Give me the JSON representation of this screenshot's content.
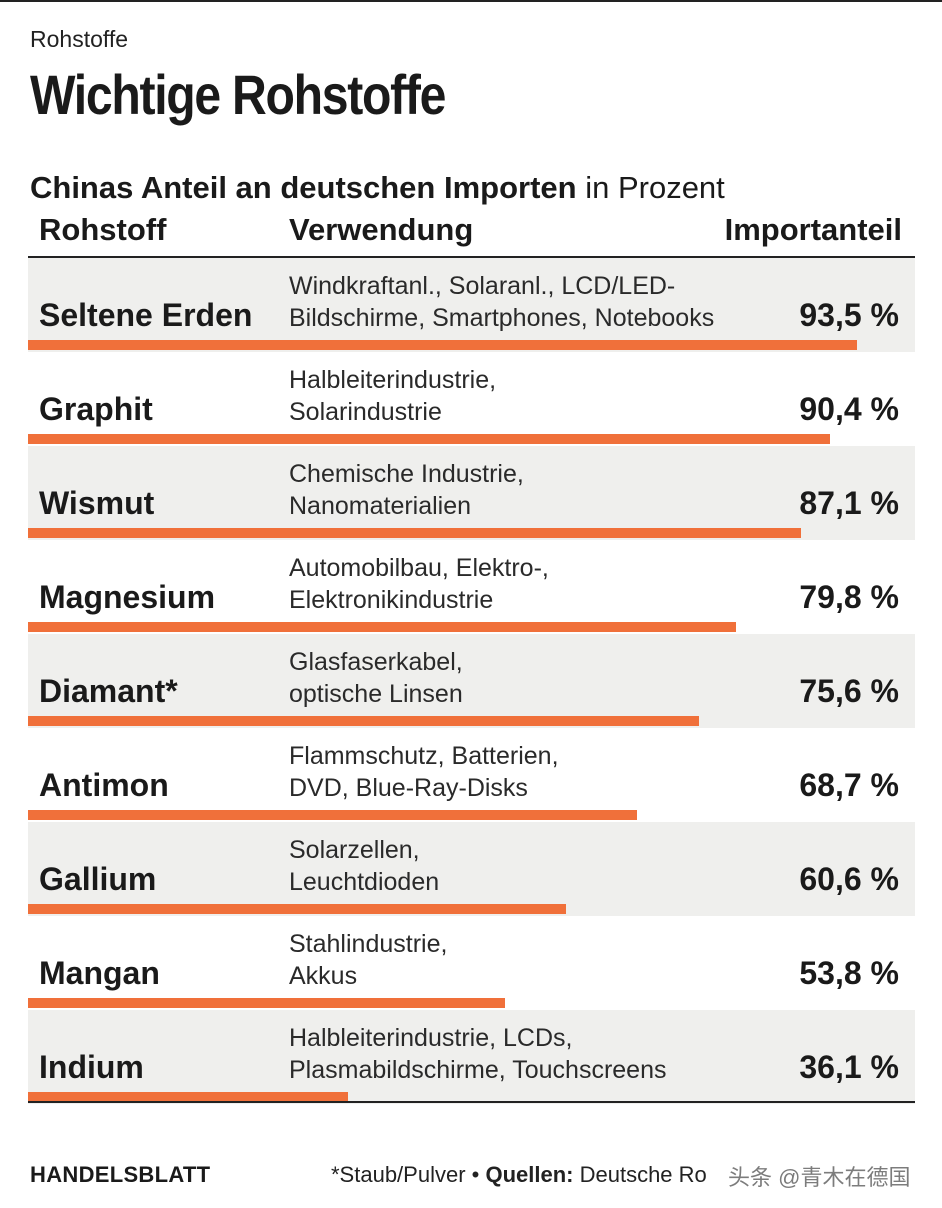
{
  "kicker": "Rohstoffe",
  "title": "Wichtige Rohstoffe",
  "subtitle_bold": "Chinas Anteil an deutschen Importen",
  "subtitle_rest": " in Prozent",
  "columns": {
    "rohstoff": "Rohstoff",
    "verwendung": "Verwendung",
    "importanteil": "Importanteil"
  },
  "chart_data": {
    "type": "bar",
    "title": "Chinas Anteil an deutschen Importen in Prozent",
    "xlabel": "Importanteil",
    "ylabel": "Rohstoff",
    "xlim": [
      0,
      100
    ],
    "categories": [
      "Seltene Erden",
      "Graphit",
      "Wismut",
      "Magnesium",
      "Diamant*",
      "Antimon",
      "Gallium",
      "Mangan",
      "Indium"
    ],
    "values": [
      93.5,
      90.4,
      87.1,
      79.8,
      75.6,
      68.7,
      60.6,
      53.8,
      36.1
    ],
    "value_labels": [
      "93,5 %",
      "90,4 %",
      "87,1 %",
      "79,8 %",
      "75,6 %",
      "68,7 %",
      "60,6 %",
      "53,8 %",
      "36,1 %"
    ],
    "uses": [
      [
        "Windkraftanl., Solaranl., LCD/LED-",
        "Bildschirme, Smartphones, Notebooks"
      ],
      [
        "Halbleiterindustrie,",
        "Solarindustrie"
      ],
      [
        "Chemische Industrie,",
        "Nanomaterialien"
      ],
      [
        "Automobilbau, Elektro-,",
        "Elektronikindustrie"
      ],
      [
        "Glasfaserkabel,",
        "optische Linsen"
      ],
      [
        "Flammschutz, Batterien,",
        "DVD, Blue-Ray-Disks"
      ],
      [
        "Solarzellen,",
        "Leuchtdioden"
      ],
      [
        "Stahlindustrie,",
        "Akkus"
      ],
      [
        "Halbleiterindustrie, LCDs,",
        "Plasmabildschirme, Touchscreens"
      ]
    ],
    "bar_color": "#f0703a",
    "row_shade_color": "#efefed"
  },
  "footer": {
    "brand": "HANDELSBLATT",
    "note": "*Staub/Pulver",
    "bullet": " • ",
    "sources_label": "Quellen:",
    "sources_text": " Deutsche Ro",
    "watermark": "头条 @青木在德国"
  }
}
